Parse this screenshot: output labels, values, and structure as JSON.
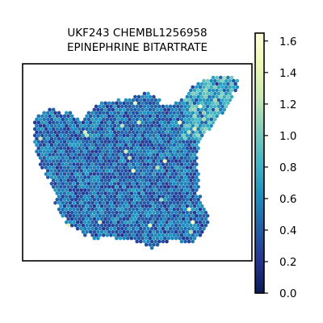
{
  "chart_data": {
    "type": "heatmap",
    "title_lines": [
      "UKF243 CHEMBL1256958",
      "EPINEPHRINE BITARTRATE"
    ],
    "xlabel": "",
    "ylabel": "",
    "colorbar": {
      "colormap": "YlGnBu",
      "range": [
        0.0,
        1.65
      ],
      "ticks": [
        0.0,
        0.2,
        0.4,
        0.6,
        0.8,
        1.0,
        1.2,
        1.4,
        1.6
      ],
      "tick_labels": [
        "0.0",
        "0.2",
        "0.4",
        "0.6",
        "0.8",
        "1.0",
        "1.2",
        "1.4",
        "1.6"
      ],
      "stops": [
        "#081d58",
        "#253494",
        "#225ea8",
        "#1d91c0",
        "#41b6c4",
        "#7fcdbb",
        "#c7e9b4",
        "#edf8b1",
        "#ffffd9"
      ]
    },
    "spot_values": {
      "typical_range": [
        0.2,
        0.7
      ],
      "max": 1.6
    },
    "grid": false,
    "axis_ticks_visible": false
  }
}
